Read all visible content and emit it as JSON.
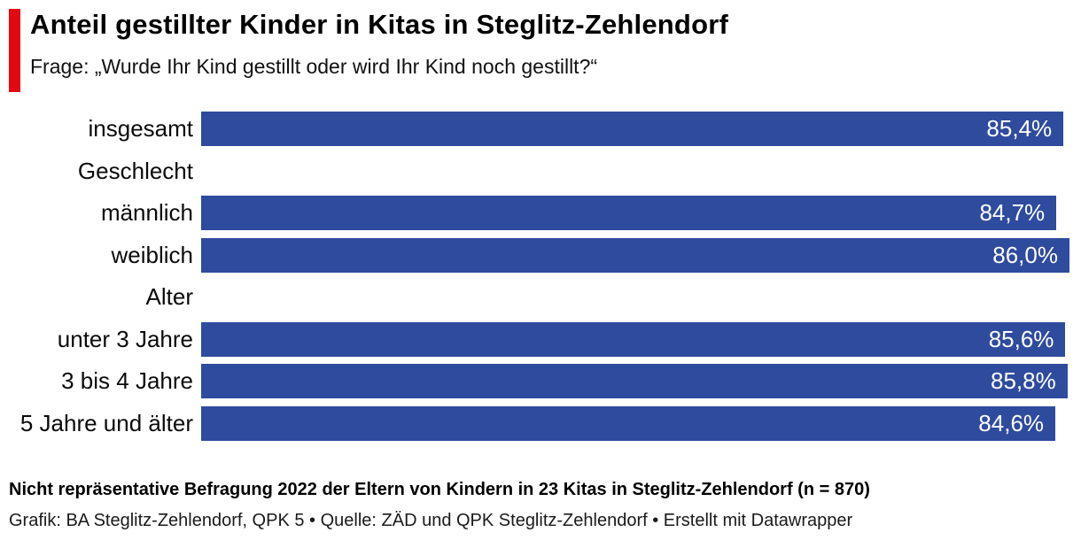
{
  "header": {
    "title": "Anteil gestillter Kinder in Kitas in Steglitz-Zehlendorf",
    "subtitle": "Frage: „Wurde Ihr Kind gestillt oder wird Ihr Kind noch gestillt?“"
  },
  "chart_data": {
    "type": "bar",
    "orientation": "horizontal",
    "title": "Anteil gestillter Kinder in Kitas in Steglitz-Zehlendorf",
    "unit": "%",
    "axis_min": 0,
    "axis_max": 86.0,
    "grid": false,
    "legend": "none",
    "value_labels": "inside-end",
    "categories": [
      "insgesamt",
      "männlich",
      "weiblich",
      "unter 3 Jahre",
      "3 bis 4 Jahre",
      "5 Jahre und älter"
    ],
    "values": [
      85.4,
      84.7,
      86.0,
      85.6,
      85.8,
      84.6
    ],
    "groups": [
      "Geschlecht",
      "Alter"
    ],
    "rows": [
      {
        "type": "bar",
        "label": "insgesamt",
        "value": 85.4,
        "value_label": "85,4%"
      },
      {
        "type": "group",
        "label": "Geschlecht"
      },
      {
        "type": "bar",
        "label": "männlich",
        "value": 84.7,
        "value_label": "84,7%"
      },
      {
        "type": "bar",
        "label": "weiblich",
        "value": 86.0,
        "value_label": "86,0%"
      },
      {
        "type": "group",
        "label": "Alter"
      },
      {
        "type": "bar",
        "label": "unter 3 Jahre",
        "value": 85.6,
        "value_label": "85,6%"
      },
      {
        "type": "bar",
        "label": "3 bis 4 Jahre",
        "value": 85.8,
        "value_label": "85,8%"
      },
      {
        "type": "bar",
        "label": "5 Jahre und älter",
        "value": 84.6,
        "value_label": "84,6%"
      }
    ]
  },
  "footer": {
    "notes": "Nicht repräsentative Befragung 2022 der Eltern von Kindern in 23 Kitas in Steglitz-Zehlendorf (n = 870)",
    "byline": "Grafik: BA Steglitz-Zehlendorf, QPK 5 • Quelle: ZÄD und QPK Steglitz-Zehlendorf • Erstellt mit Datawrapper"
  },
  "colors": {
    "bar_blue": "#2f4b9e",
    "accent_red": "#e30613",
    "value_text": "#ffffff",
    "background": "#ffffff"
  }
}
